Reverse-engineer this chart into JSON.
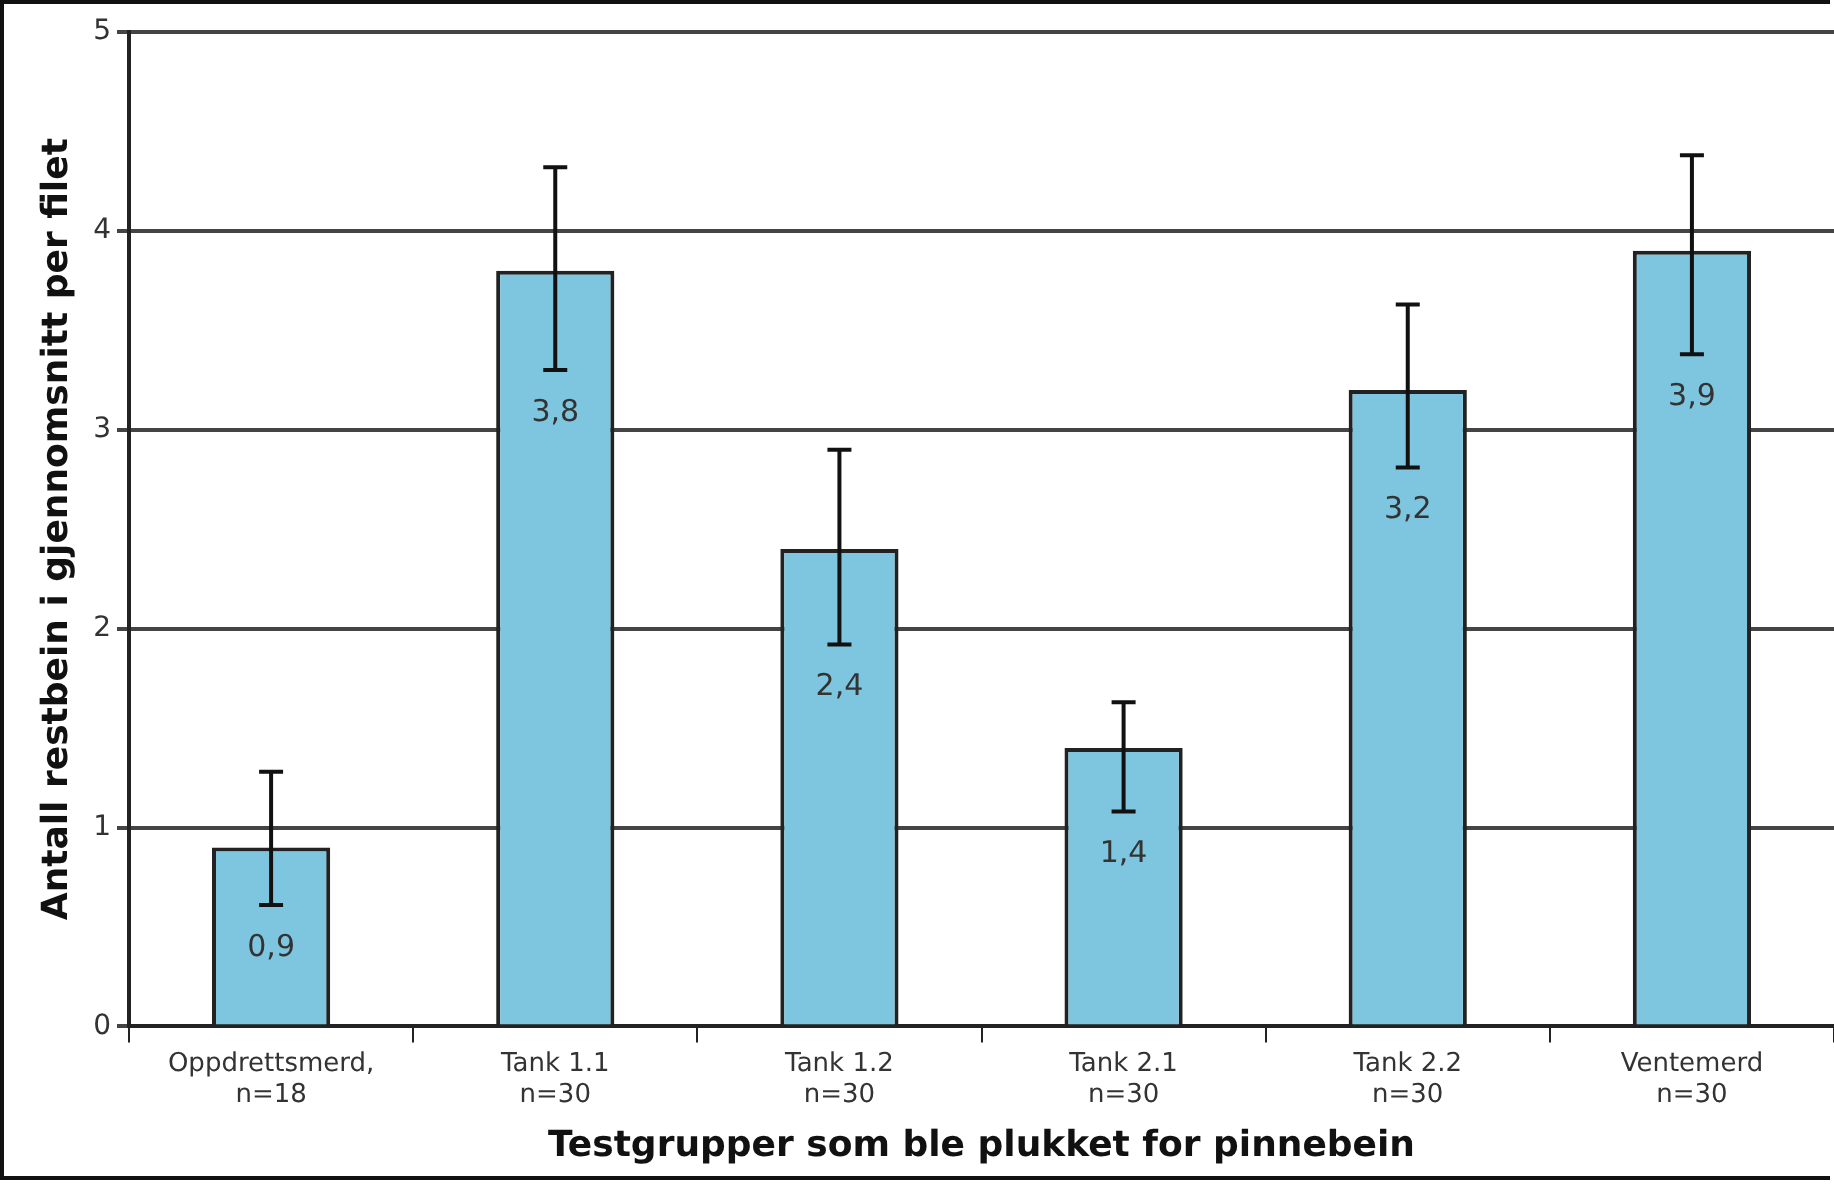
{
  "chart_data": {
    "type": "bar",
    "xlabel": "Testgrupper som ble plukket for pinnebein",
    "ylabel": "Antall restbein i gjennomsnitt per filet",
    "categories": [
      "Oppdrettsmerd,\nn=18",
      "Tank 1.1\nn=30",
      "Tank 1.2\nn=30",
      "Tank 2.1\nn=30",
      "Tank 2.2\nn=30",
      "Ventemerd\nn=30"
    ],
    "values": [
      0.9,
      3.8,
      2.4,
      1.4,
      3.2,
      3.9
    ],
    "value_labels": [
      "0,9",
      "3,8",
      "2,4",
      "1,4",
      "3,2",
      "3,9"
    ],
    "errors": [
      [
        0.61,
        1.28
      ],
      [
        3.3,
        4.32
      ],
      [
        1.92,
        2.9
      ],
      [
        1.08,
        1.63
      ],
      [
        2.81,
        3.63
      ],
      [
        3.38,
        4.38
      ]
    ],
    "color": "#7ec6df",
    "ylim": [
      0,
      5
    ],
    "yticks": [
      0,
      1,
      2,
      3,
      4,
      5
    ],
    "grid": "y",
    "legend": false
  }
}
